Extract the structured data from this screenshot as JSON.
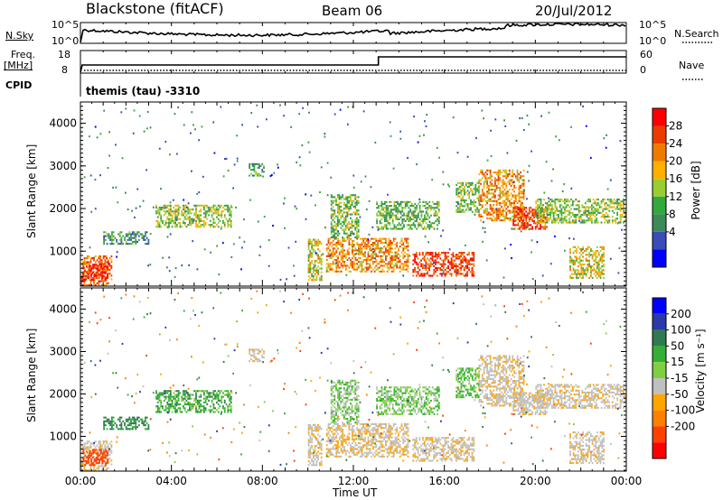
{
  "header": {
    "station": "Blackstone (fitACF)",
    "beam": "Beam 06",
    "date": "20/Jul/2012"
  },
  "top_strips": {
    "nsky": {
      "label": "N.Sky",
      "ticks": [
        "10^5",
        "10^0"
      ]
    },
    "nsearch": {
      "label": "N.Search",
      "ticks": [
        "10^5",
        "10^0"
      ]
    },
    "freq": {
      "label_1": "Freq.",
      "label_2": "[MHz]",
      "ticks": [
        "18",
        "8"
      ]
    },
    "nave": {
      "label": "Nave",
      "ticks": [
        "60",
        "0"
      ]
    },
    "cpid": {
      "label": "CPID",
      "value": "themis (tau) -3310"
    }
  },
  "colors": {
    "power": [
      "#0000ff",
      "#3b4bb8",
      "#3c8a5a",
      "#33a83c",
      "#9acd32",
      "#ffb000",
      "#f07a00",
      "#e83c00",
      "#ff0000"
    ],
    "velocity_pos": [
      "#0000ff",
      "#2a3aa8",
      "#2f7a4f",
      "#33b033",
      "#7fd040"
    ],
    "velocity_gs": "#c0c0c0",
    "velocity_neg": [
      "#ffa500",
      "#ff8000",
      "#ff4000",
      "#ff0000"
    ]
  },
  "colorbar_power": {
    "label": "Power [dB]",
    "ticks": [
      "28",
      "24",
      "20",
      "16",
      "12",
      "8",
      "4"
    ]
  },
  "colorbar_velocity": {
    "label": "Velocity [m s⁻¹]",
    "ticks": [
      "200",
      "100",
      "50",
      "15",
      "-15",
      "-50",
      "-100",
      "-200"
    ]
  },
  "panels": {
    "ylabel": "Slant Range [km]",
    "yticks": [
      "4000",
      "3000",
      "2000",
      "1000"
    ]
  },
  "x_axis": {
    "label": "Time UT",
    "ticks": [
      "00:00",
      "04:00",
      "08:00",
      "12:00",
      "16:00",
      "20:00",
      "00:00"
    ]
  },
  "chart_data": {
    "type": "heatmap",
    "title": "Blackstone (fitACF)  Beam 06  20/Jul/2012",
    "xlabel": "Time UT",
    "ylabel": "Slant Range [km]",
    "xlim_hours": [
      0,
      24
    ],
    "ylim_km": [
      180,
      4500
    ],
    "power_db_range": [
      0,
      32
    ],
    "velocity_range": [
      -250,
      250
    ],
    "freq_step": {
      "before_hours": 13.1,
      "after_hours": 13.1,
      "low_mhz": 10.5,
      "high_mhz": 16.5
    },
    "echo_regions": [
      {
        "t0": 0.0,
        "t1": 1.4,
        "r0": 180,
        "r1": 900,
        "power": 25,
        "vel": -5
      },
      {
        "t0": 0.1,
        "t1": 1.2,
        "r0": 300,
        "r1": 700,
        "power": 29,
        "vel": -120
      },
      {
        "t0": 1.0,
        "t1": 3.0,
        "r0": 1150,
        "r1": 1450,
        "power": 10,
        "vel": 60
      },
      {
        "t0": 3.3,
        "t1": 6.6,
        "r0": 1550,
        "r1": 2050,
        "power": 15,
        "vel": 40
      },
      {
        "t0": 7.4,
        "t1": 8.1,
        "r0": 2750,
        "r1": 3050,
        "power": 12,
        "vel": -5
      },
      {
        "t0": 10.0,
        "t1": 10.6,
        "r0": 300,
        "r1": 1250,
        "power": 18,
        "vel": -8
      },
      {
        "t0": 10.8,
        "t1": 14.4,
        "r0": 500,
        "r1": 1300,
        "power": 22,
        "vel": -10
      },
      {
        "t0": 11.0,
        "t1": 12.2,
        "r0": 1300,
        "r1": 2300,
        "power": 14,
        "vel": 20
      },
      {
        "t0": 13.0,
        "t1": 15.8,
        "r0": 1500,
        "r1": 2150,
        "power": 13,
        "vel": 25
      },
      {
        "t0": 14.6,
        "t1": 17.3,
        "r0": 400,
        "r1": 950,
        "power": 27,
        "vel": -5
      },
      {
        "t0": 16.5,
        "t1": 17.5,
        "r0": 1900,
        "r1": 2600,
        "power": 14,
        "vel": 30
      },
      {
        "t0": 17.5,
        "t1": 19.5,
        "r0": 1700,
        "r1": 2900,
        "power": 22,
        "vel": -5
      },
      {
        "t0": 19.0,
        "t1": 20.5,
        "r0": 1500,
        "r1": 2000,
        "power": 27,
        "vel": -5
      },
      {
        "t0": 20.0,
        "t1": 24.0,
        "r0": 1650,
        "r1": 2200,
        "power": 15,
        "vel": -5
      },
      {
        "t0": 21.5,
        "t1": 23.0,
        "r0": 350,
        "r1": 1100,
        "power": 18,
        "vel": -5
      }
    ]
  }
}
